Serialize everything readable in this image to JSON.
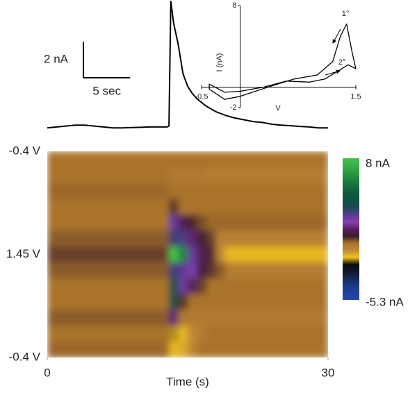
{
  "chart_data": [
    {
      "type": "line",
      "color": "#000000",
      "x": [
        0,
        1,
        2,
        3,
        4,
        5,
        6,
        7,
        8,
        9,
        10,
        11,
        12,
        12.8,
        13.0,
        13.2,
        13.5,
        14,
        14.5,
        15,
        15.5,
        16,
        17,
        18,
        19,
        20,
        21,
        22,
        23,
        24,
        25,
        26,
        27,
        28,
        29,
        30
      ],
      "values": [
        0,
        0.05,
        0.1,
        0.15,
        0.15,
        0.1,
        0.05,
        0,
        0,
        0.02,
        0.03,
        0.05,
        0.05,
        0.05,
        0.1,
        7.0,
        5.8,
        4.6,
        3.0,
        2.3,
        1.9,
        1.6,
        1.2,
        0.9,
        0.7,
        0.55,
        0.45,
        0.35,
        0.3,
        0.2,
        0.15,
        0.12,
        0.08,
        0.05,
        0,
        0
      ],
      "xlim": [
        0,
        30
      ],
      "ylim": [
        -0.3,
        7
      ],
      "scale_bar": {
        "y_value": 2,
        "y_label": "2 nA",
        "x_value": 5,
        "x_label": "5 sec"
      }
    },
    {
      "type": "line",
      "color": "#000000",
      "xlabel": "V",
      "ylabel": "I (nA)",
      "x": [
        -0.4,
        -0.2,
        0.0,
        0.3,
        0.6,
        0.9,
        1.1,
        1.25,
        1.4,
        1.5,
        1.45,
        1.38,
        1.3,
        1.2,
        1.0,
        0.7,
        0.4,
        0.0,
        -0.2,
        -0.4
      ],
      "values": [
        0.3,
        -0.5,
        -0.4,
        0.0,
        0.6,
        0.5,
        0.8,
        1.5,
        2.2,
        1.8,
        3.5,
        6.2,
        5.0,
        2.5,
        1.2,
        0.8,
        0.1,
        -0.9,
        -1.2,
        -0.2
      ],
      "xlim": [
        -0.5,
        1.5
      ],
      "ylim": [
        -2,
        8
      ],
      "xticks": [
        -0.5,
        1.5
      ],
      "yticks": [
        -2,
        8
      ],
      "annotations": [
        "1°",
        "2°"
      ]
    },
    {
      "type": "heatmap",
      "xlabel": "Time (s)",
      "x": [
        0,
        1,
        2,
        3,
        4,
        5,
        6,
        7,
        8,
        9,
        10,
        11,
        12,
        13,
        14,
        15,
        16,
        17,
        18,
        19,
        20,
        21,
        22,
        23,
        24,
        25,
        26,
        27,
        28,
        29
      ],
      "xlim": [
        0,
        30
      ],
      "xticks": [
        0,
        30
      ],
      "categories": [
        "-0.4 V",
        null,
        null,
        null,
        null,
        null,
        "1.45 V",
        null,
        null,
        null,
        null,
        null,
        "-0.4 V"
      ],
      "values": [
        [
          0,
          0,
          0,
          0,
          0,
          0,
          0,
          0,
          0,
          0,
          0,
          0,
          0,
          0,
          0,
          0,
          0,
          0,
          0,
          0,
          0,
          0,
          0,
          0,
          0,
          0,
          0,
          0,
          0,
          0
        ],
        [
          0,
          0,
          0,
          0,
          0,
          0,
          0,
          0,
          0,
          0,
          0,
          0,
          0,
          -0.2,
          -0.2,
          -0.2,
          -0.2,
          -0.3,
          -0.3,
          -0.3,
          -0.3,
          -0.3,
          -0.3,
          -0.3,
          -0.3,
          -0.3,
          -0.3,
          -0.3,
          -0.3,
          -0.3
        ],
        [
          0.1,
          0.1,
          0.1,
          0.1,
          0.1,
          0.1,
          0.1,
          0.1,
          0.1,
          0.1,
          0.1,
          0.1,
          0.1,
          0,
          0,
          0,
          0,
          0,
          0,
          0,
          0,
          0,
          0,
          0,
          0,
          0,
          0,
          0,
          0,
          0
        ],
        [
          0,
          0,
          0,
          0,
          0,
          0,
          0,
          0,
          0,
          0,
          0,
          0,
          0,
          0.5,
          0,
          0,
          0,
          0,
          0,
          0,
          0,
          0,
          0,
          0,
          0,
          0,
          0,
          0,
          0,
          0
        ],
        [
          0,
          0,
          0,
          0,
          0,
          0,
          0,
          0,
          0,
          0,
          0,
          0,
          0,
          2.5,
          1.2,
          0.6,
          0.3,
          0.1,
          0.1,
          0.1,
          0.1,
          0.1,
          0.1,
          0.1,
          0.1,
          0.1,
          0.1,
          0.1,
          0.1,
          0.1
        ],
        [
          0.2,
          0.2,
          0.2,
          0.2,
          0.2,
          0.2,
          0.2,
          0.2,
          0.2,
          0.2,
          0.2,
          0.2,
          0.2,
          3,
          2.8,
          1.5,
          0.8,
          0.4,
          -0.4,
          -0.4,
          -0.4,
          -0.4,
          -0.4,
          -0.4,
          -0.4,
          -0.4,
          -0.4,
          -0.4,
          -0.4,
          -0.4
        ],
        [
          0.4,
          0.4,
          0.4,
          0.4,
          0.4,
          0.4,
          0.4,
          0.4,
          0.4,
          0.4,
          0.4,
          0.4,
          0.4,
          8,
          6,
          2.5,
          1.2,
          0.6,
          -0.6,
          -1.2,
          -1.2,
          -1.2,
          -1.2,
          -1.2,
          -1.2,
          -1.2,
          -1.2,
          -1.2,
          -1.2,
          -1.2
        ],
        [
          0.2,
          0.2,
          0.2,
          0.2,
          0.2,
          0.2,
          0.2,
          0.2,
          0.2,
          0.2,
          0.2,
          0.2,
          0.2,
          3,
          2.6,
          2.2,
          1,
          0.5,
          0.2,
          -0.3,
          -0.3,
          -0.3,
          -0.3,
          -0.3,
          -0.3,
          -0.3,
          -0.3,
          -0.3,
          -0.3,
          -0.3
        ],
        [
          0,
          0,
          0,
          0,
          0,
          0,
          0,
          0,
          0,
          0,
          0,
          0,
          0,
          4,
          2.4,
          1.3,
          0.4,
          0,
          0,
          0,
          0,
          0,
          0,
          0,
          0,
          0,
          0,
          0,
          0,
          0
        ],
        [
          0,
          0,
          0,
          0,
          0,
          0,
          0,
          0,
          0,
          0,
          0,
          0,
          0,
          4,
          0.5,
          0,
          0,
          0,
          0,
          0,
          0,
          0,
          0,
          0,
          0,
          0,
          0,
          0,
          0,
          0
        ],
        [
          0.2,
          0.2,
          0.2,
          0.2,
          0.2,
          0.2,
          0.2,
          0.2,
          0.2,
          0.2,
          0.2,
          0.2,
          0.2,
          1.5,
          -0.2,
          -0.2,
          -0.2,
          -0.2,
          -0.2,
          -0.2,
          -0.2,
          -0.2,
          -0.2,
          -0.2,
          -0.2,
          -0.2,
          -0.2,
          -0.2,
          -0.2,
          -0.2
        ],
        [
          0,
          0,
          0,
          0,
          0,
          0,
          0,
          0,
          0,
          0,
          0,
          0,
          0,
          -1.5,
          -1.2,
          -0.6,
          -0.3,
          0,
          0,
          0,
          0,
          0,
          0,
          0,
          0,
          0,
          0,
          0,
          0,
          0
        ],
        [
          0.1,
          0.1,
          0.1,
          0.1,
          0.1,
          0.1,
          0.1,
          0.1,
          0.1,
          0.1,
          0.1,
          0.1,
          0.1,
          -1.2,
          -1,
          -0.5,
          0,
          0,
          0,
          0,
          0,
          0,
          0,
          0,
          0,
          0,
          0,
          0,
          0,
          0
        ]
      ],
      "zlim": [
        -5.3,
        8
      ],
      "zticks": [
        {
          "value": 8,
          "label": "8 nA"
        },
        {
          "value": -5.3,
          "label": "-5.3 nA"
        }
      ],
      "colorscale": [
        "#46c04a",
        "#38b048",
        "#2a9a44",
        "#1d8440",
        "#136c3c",
        "#0f5a40",
        "#105048",
        "#204858",
        "#5a3a90",
        "#8a40b0",
        "#5a2060",
        "#3a1c28",
        "#a8722c",
        "#c08a38",
        "#f0c020",
        "#0c0c0c",
        "#101828",
        "#152858",
        "#1c3a88",
        "#2040a0",
        "#2448b0"
      ]
    }
  ]
}
